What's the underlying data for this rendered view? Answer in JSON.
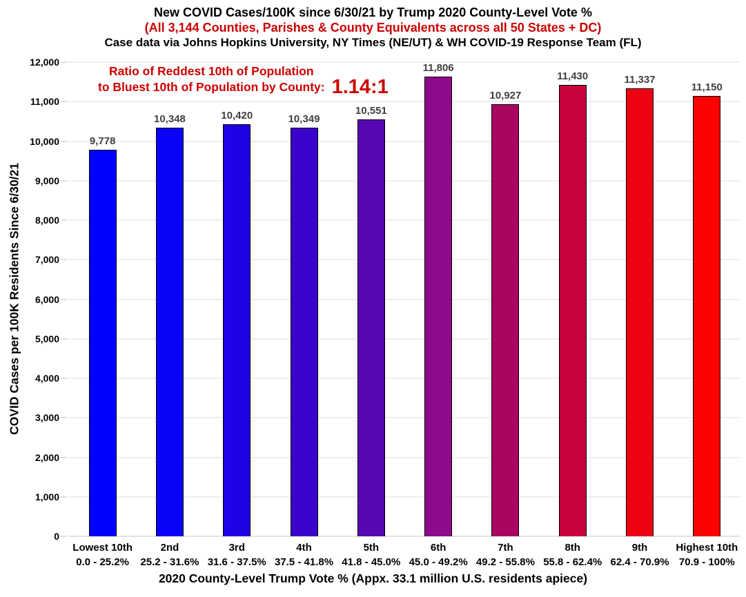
{
  "chart_data": {
    "type": "bar",
    "title": "New COVID Cases/100K since 6/30/21 by Trump 2020 County-Level Vote %",
    "subtitle": "(All 3,144 Counties, Parishes & County Equivalents across all 50 States + DC)",
    "source_note": "Case data via Johns Hopkins University, NY Times (NE/UT) & WH COVID-19 Response Team (FL)",
    "annotation": {
      "line1": "Ratio of Reddest 10th of Population",
      "line2": "to Bluest 10th of Population by County:",
      "value": "1.14:1"
    },
    "categories": [
      "Lowest 10th",
      "2nd",
      "3rd",
      "4th",
      "5th",
      "6th",
      "7th",
      "8th",
      "9th",
      "Highest 10th"
    ],
    "category_vote_ranges": [
      "0.0 - 25.2%",
      "25.2 - 31.6%",
      "31.6 - 37.5%",
      "37.5 - 41.8%",
      "41.8 - 45.0%",
      "45.0 - 49.2%",
      "49.2 - 55.8%",
      "55.8 - 62.4%",
      "62.4 - 70.9%",
      "70.9 - 100%"
    ],
    "values": [
      9778,
      10348,
      10420,
      10349,
      10551,
      11806,
      10927,
      11430,
      11337,
      11150
    ],
    "value_labels": [
      "9,778",
      "10,348",
      "10,420",
      "10,349",
      "10,551",
      "11,806",
      "10,927",
      "11,430",
      "11,337",
      "11,150"
    ],
    "bar_colors": [
      "#0000FE",
      "#0A02F8",
      "#2002E6",
      "#3A04CD",
      "#5707B1",
      "#8D0A8A",
      "#AA0561",
      "#C7033E",
      "#EE0211",
      "#FE0101"
    ],
    "xlabel": "2020 County-Level Trump Vote % (Appx. 33.1 million U.S. residents apiece)",
    "ylabel": "COVID Cases per 100K Residents Since 6/30/21",
    "ylim": [
      0,
      12000
    ],
    "ytick_step": 1000,
    "ytick_labels": [
      "0",
      "1,000",
      "2,000",
      "3,000",
      "4,000",
      "5,000",
      "6,000",
      "7,000",
      "8,000",
      "9,000",
      "10,000",
      "11,000",
      "12,000"
    ],
    "grid": "horizontal-light",
    "legend": "none",
    "colors": {
      "title_text": "#000000",
      "red_text": "#CC0000",
      "value_label_text": "#3F3F3F",
      "gridline": "#DCDCDC",
      "axis_baseline": "#C6C6C6",
      "bar_border": "#000000",
      "background": "#FFFFFF"
    }
  }
}
